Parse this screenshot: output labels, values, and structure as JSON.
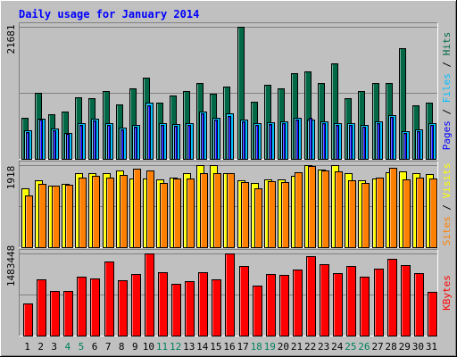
{
  "chart_data": {
    "type": "bar",
    "title": "Daily usage for January 2014",
    "categories": [
      "1",
      "2",
      "3",
      "4",
      "5",
      "6",
      "7",
      "8",
      "9",
      "10",
      "11",
      "12",
      "13",
      "14",
      "15",
      "16",
      "17",
      "18",
      "19",
      "20",
      "21",
      "22",
      "23",
      "24",
      "25",
      "26",
      "27",
      "28",
      "29",
      "30",
      "31"
    ],
    "weekend_days": [
      4,
      5,
      11,
      12,
      18,
      19,
      25,
      26
    ],
    "panels": [
      {
        "id": "hits",
        "max_label": "21681",
        "max_value": 21681,
        "axis_labels": [
          "Pages",
          "Files",
          "Hits"
        ],
        "series": [
          {
            "name": "Hits",
            "color": "#006846",
            "values": [
              6800,
              10900,
              7300,
              7700,
              10100,
              10000,
              11100,
              9000,
              11600,
              13300,
              9200,
              10400,
              11100,
              12400,
              10700,
              11900,
              21681,
              9400,
              12100,
              11500,
              14000,
              14300,
              12400,
              15700,
              10000,
              11200,
              12400,
              12400,
              18200,
              8800,
              9200
            ]
          },
          {
            "name": "Files",
            "color": "#00BFFF",
            "values": [
              4700,
              6600,
              5000,
              4300,
              5800,
              6600,
              5800,
              5200,
              5600,
              9200,
              5800,
              5700,
              5900,
              7700,
              6800,
              7400,
              6400,
              5900,
              6000,
              6200,
              6800,
              6400,
              6200,
              5900,
              5900,
              5600,
              6100,
              7200,
              4500,
              4800,
              5900
            ]
          },
          {
            "name": "Pages",
            "color": "#0000FF",
            "values": [
              4400,
              6400,
              4700,
              4100,
              5500,
              6300,
              5500,
              4900,
              5300,
              8800,
              5500,
              5400,
              5600,
              7400,
              6500,
              7100,
              6100,
              5600,
              5700,
              5900,
              6500,
              6700,
              5900,
              5600,
              5600,
              5300,
              5800,
              6900,
              4200,
              4500,
              5600
            ]
          }
        ]
      },
      {
        "id": "visits",
        "max_label": "1918",
        "max_value": 1918,
        "axis_labels": [
          "Sites",
          "Visits"
        ],
        "series": [
          {
            "name": "Visits",
            "color": "#FFFF00",
            "values": [
              1380,
              1560,
              1440,
              1490,
              1740,
              1730,
              1730,
              1790,
              1610,
              1600,
              1590,
              1630,
              1740,
              1918,
              1918,
              1730,
              1560,
              1500,
              1580,
              1580,
              1670,
              1918,
              1810,
              1918,
              1720,
              1570,
              1600,
              1760,
              1780,
              1730,
              1700
            ]
          },
          {
            "name": "Sites",
            "color": "#FF8000",
            "values": [
              1200,
              1490,
              1440,
              1450,
              1630,
              1670,
              1630,
              1680,
              1830,
              1800,
              1500,
              1600,
              1600,
              1730,
              1730,
              1730,
              1520,
              1380,
              1540,
              1530,
              1760,
              1890,
              1790,
              1780,
              1560,
              1510,
              1630,
              1850,
              1590,
              1620,
              1610
            ]
          }
        ]
      },
      {
        "id": "kbytes",
        "max_label": "1483448",
        "max_value": 1483448,
        "axis_labels": [
          "KBytes"
        ],
        "series": [
          {
            "name": "KBytes",
            "color": "#FF0000",
            "values": [
              585000,
              1015000,
              800000,
              800000,
              1060000,
              1030000,
              1340000,
              1000000,
              1110000,
              1480000,
              1140000,
              940000,
              980000,
              1150000,
              1010000,
              1483448,
              1260000,
              910000,
              1110000,
              1090000,
              1200000,
              1430000,
              1290000,
              1130000,
              1260000,
              1060000,
              1210000,
              1390000,
              1270000,
              1130000,
              790000
            ]
          }
        ]
      }
    ]
  }
}
